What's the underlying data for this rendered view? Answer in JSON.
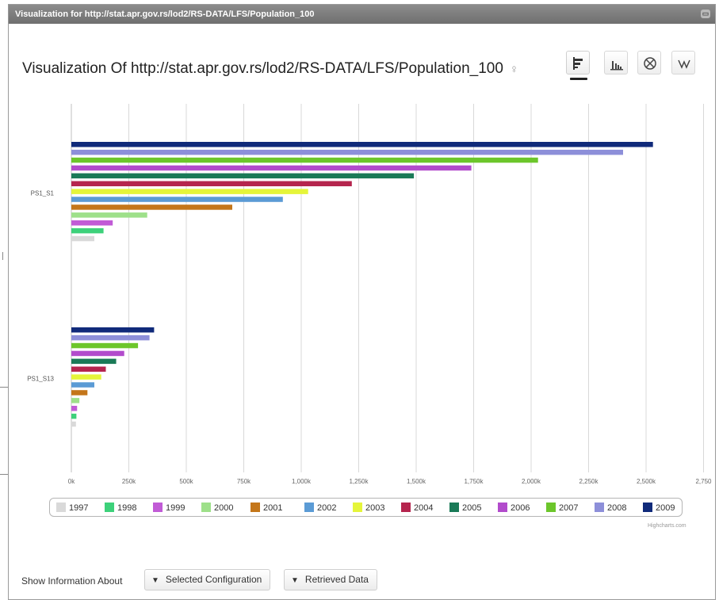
{
  "window": {
    "title": "Visualization for http://stat.apr.gov.rs/lod2/RS-DATA/LFS/Population_100"
  },
  "heading": "Visualization Of http://stat.apr.gov.rs/lod2/RS-DATA/LFS/Population_100",
  "toolbar": {
    "buttons": [
      {
        "name": "horizontal-bar-chart",
        "active": true
      },
      {
        "name": "column-chart",
        "active": false
      },
      {
        "name": "pie-chart",
        "active": false
      },
      {
        "name": "line-chart",
        "active": false
      }
    ]
  },
  "chart_data": {
    "type": "bar",
    "orientation": "horizontal",
    "categories": [
      "PS1_S1",
      "PS1_S13"
    ],
    "x_ticks": [
      "0k",
      "250k",
      "500k",
      "750k",
      "1,000k",
      "1,250k",
      "1,500k",
      "1,750k",
      "2,000k",
      "2,250k",
      "2,500k",
      "2,750"
    ],
    "xlim": [
      0,
      2750000
    ],
    "grid": true,
    "legend": "bottom",
    "series": [
      {
        "name": "1997",
        "color": "#d9d9d9",
        "values": [
          100000,
          20000
        ]
      },
      {
        "name": "1998",
        "color": "#3dd17a",
        "values": [
          140000,
          22000
        ]
      },
      {
        "name": "1999",
        "color": "#c15bd6",
        "values": [
          180000,
          25000
        ]
      },
      {
        "name": "2000",
        "color": "#9ee08a",
        "values": [
          330000,
          35000
        ]
      },
      {
        "name": "2001",
        "color": "#c4761a",
        "values": [
          700000,
          70000
        ]
      },
      {
        "name": "2002",
        "color": "#5b9bd5",
        "values": [
          920000,
          100000
        ]
      },
      {
        "name": "2003",
        "color": "#e5f53a",
        "values": [
          1030000,
          130000
        ]
      },
      {
        "name": "2004",
        "color": "#b5254e",
        "values": [
          1220000,
          150000
        ]
      },
      {
        "name": "2005",
        "color": "#1a7a57",
        "values": [
          1490000,
          195000
        ]
      },
      {
        "name": "2006",
        "color": "#b24bcc",
        "values": [
          1740000,
          230000
        ]
      },
      {
        "name": "2007",
        "color": "#6cc62b",
        "values": [
          2030000,
          290000
        ]
      },
      {
        "name": "2008",
        "color": "#8d8fd9",
        "values": [
          2400000,
          340000
        ]
      },
      {
        "name": "2009",
        "color": "#102a7a",
        "values": [
          2530000,
          360000
        ]
      }
    ]
  },
  "credits": "Highcharts.com",
  "info": {
    "label": "Show Information About",
    "buttons": [
      "Selected Configuration",
      "Retrieved Data"
    ]
  }
}
